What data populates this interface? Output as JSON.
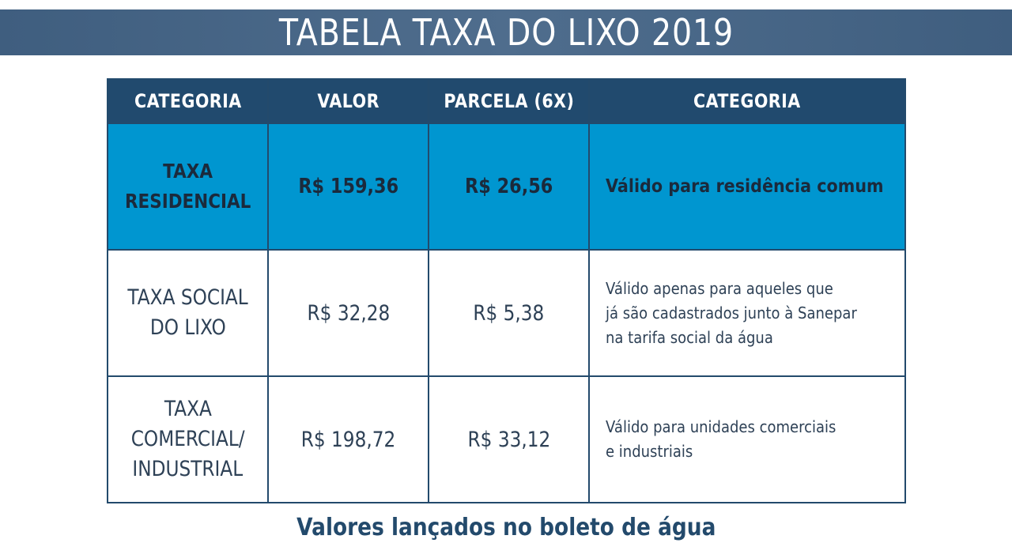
{
  "title": "TABELA TAXA DO LIXO 2019",
  "table": {
    "headers": [
      "CATEGORIA",
      "VALOR",
      "PARCELA (6X)",
      "CATEGORIA"
    ],
    "rows": [
      {
        "category": [
          "TAXA",
          "RESIDENCIAL"
        ],
        "valor": "R$ 159,36",
        "parcela": "R$ 26,56",
        "descricao": [
          "Válido para residência comum"
        ],
        "highlighted": true
      },
      {
        "category": [
          "TAXA SOCIAL",
          "DO LIXO"
        ],
        "valor": "R$ 32,28",
        "parcela": "R$ 5,38",
        "descricao": [
          "Válido apenas para aqueles que",
          "já são cadastrados junto à Sanepar",
          "na tarifa social da água"
        ],
        "highlighted": false
      },
      {
        "category": [
          "TAXA",
          "COMERCIAL/",
          "INDUSTRIAL"
        ],
        "valor": "R$ 198,72",
        "parcela": "R$ 33,12",
        "descricao": [
          "Válido para unidades comerciais",
          "e industriais"
        ],
        "highlighted": false
      }
    ]
  },
  "footer": "Valores lançados no boleto de água",
  "colors": {
    "title_bar": "#4a6888",
    "header_bg": "#214a6e",
    "highlight_bg": "#0096d0",
    "border": "#234a6c",
    "footer_text": "#234a6c"
  }
}
